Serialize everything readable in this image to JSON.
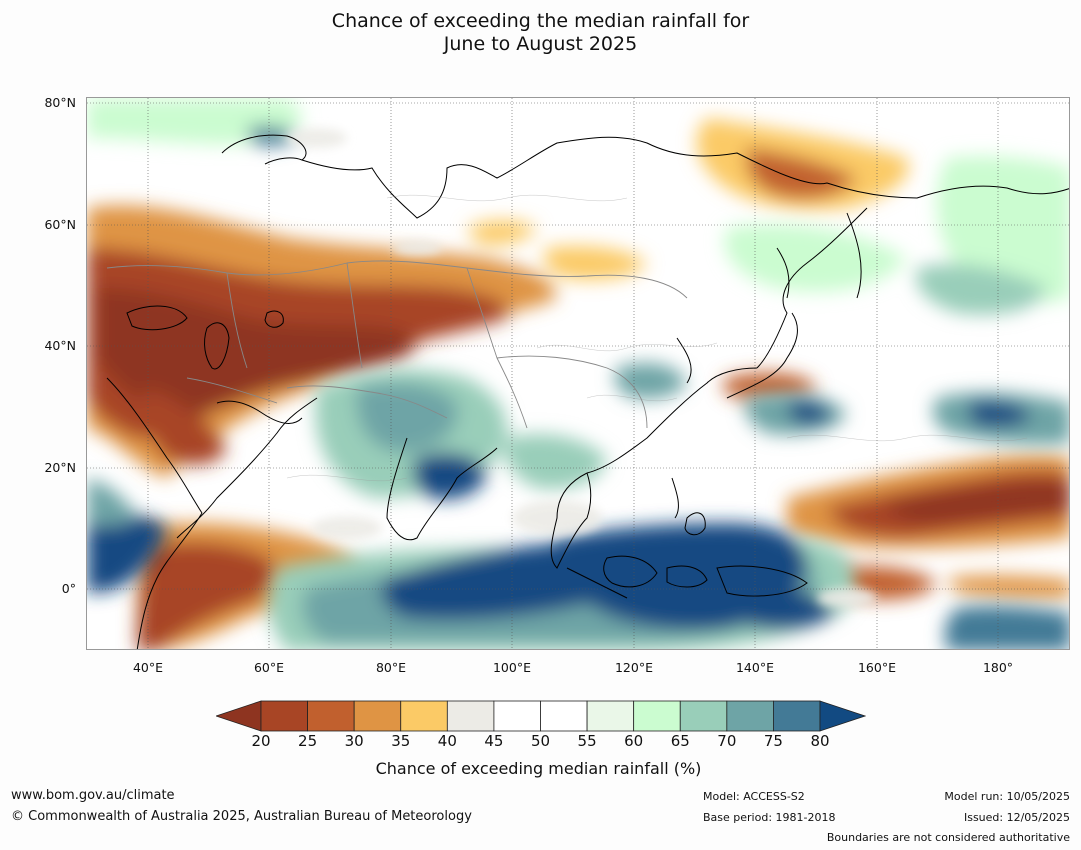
{
  "title": {
    "line1": "Chance of exceeding the median rainfall for",
    "line2": "June to August 2025"
  },
  "map": {
    "lat_labels": [
      "80°N",
      "60°N",
      "40°N",
      "20°N",
      "0°"
    ],
    "lon_labels": [
      "40°E",
      "60°E",
      "80°E",
      "100°E",
      "120°E",
      "140°E",
      "160°E",
      "180°"
    ],
    "extent": {
      "lon": [
        30,
        192
      ],
      "lat": [
        -10,
        81
      ]
    }
  },
  "colorbar": {
    "ticks": [
      "20",
      "25",
      "30",
      "35",
      "40",
      "45",
      "50",
      "55",
      "60",
      "65",
      "70",
      "75",
      "80"
    ],
    "under_color": "#8e3420",
    "over_color": "#124a82",
    "colors": [
      "#a84525",
      "#c1602e",
      "#df9444",
      "#fbca66",
      "#ecebe6",
      "#ffffff",
      "#ffffff",
      "#eaf7e8",
      "#cbfcd0",
      "#99ceb9",
      "#6ea4a6",
      "#437a96"
    ],
    "label": "Chance of exceeding median rainfall (%)"
  },
  "footer": {
    "website": "www.bom.gov.au/climate",
    "copyright": "© Commonwealth of Australia 2025, Australian Bureau of Meteorology",
    "model": "Model: ACCESS-S2",
    "base_period": "Base period: 1981-2018",
    "model_run": "Model run: 10/05/2025",
    "issued": "Issued: 12/05/2025",
    "disclaimer": "Boundaries are not considered authoritative"
  }
}
